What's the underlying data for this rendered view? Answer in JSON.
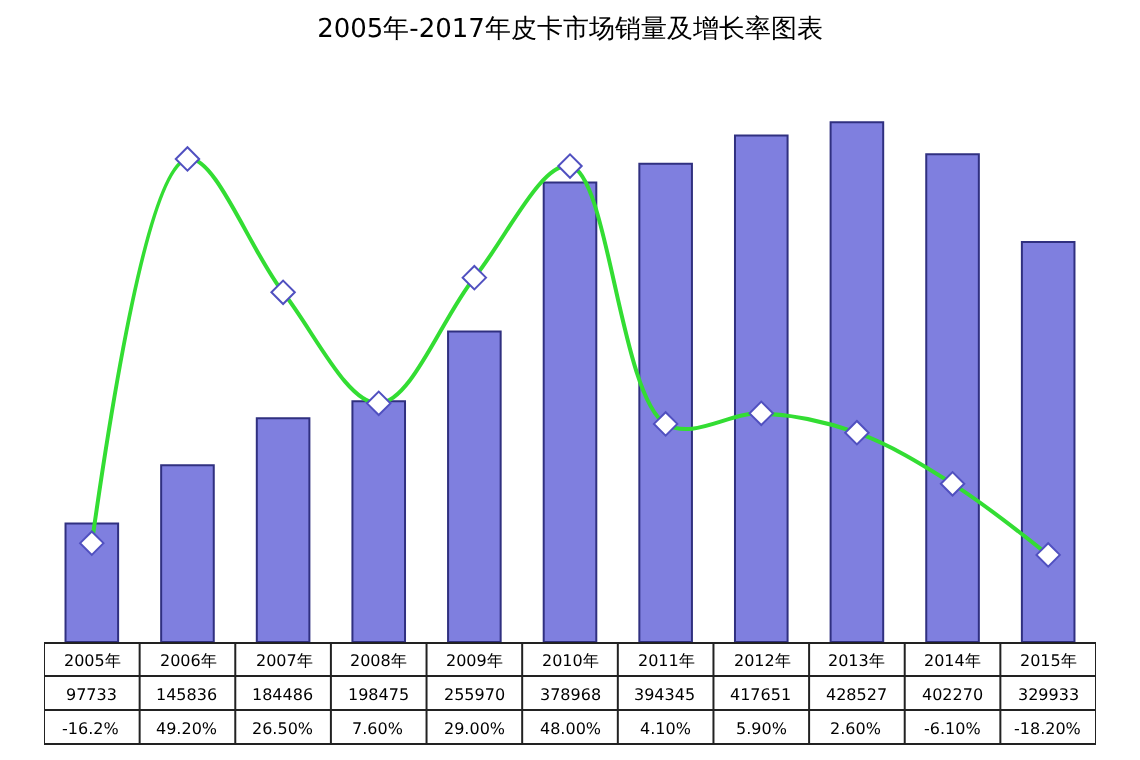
{
  "chart_data": {
    "type": "bar",
    "title": "2005年-2017年皮卡市场销量及增长率图表",
    "categories": [
      "2005年",
      "2006年",
      "2007年",
      "2008年",
      "2009年",
      "2010年",
      "2011年",
      "2012年",
      "2013年",
      "2014年",
      "2015年"
    ],
    "series": [
      {
        "color": "#7f7fdf",
        "values": [
          97733,
          145836,
          184486,
          198475,
          255970,
          378968,
          394345,
          417651,
          428527,
          402270,
          329933
        ],
        "value_labels": [
          "97733",
          "145836",
          "184486",
          "198475",
          "255970",
          "378968",
          "394345",
          "417651",
          "428527",
          "402270",
          "329933"
        ]
      },
      {
        "type": "line",
        "axis": "y2",
        "color": "#33dd33",
        "marker": "diamond",
        "values": [
          -16.2,
          49.2,
          26.5,
          7.6,
          29.0,
          48.0,
          4.1,
          5.9,
          2.6,
          -6.1,
          -18.2
        ],
        "value_labels": [
          "-16.2%",
          "49.20%",
          "26.50%",
          "7.60%",
          "29.00%",
          "48.00%",
          "4.10%",
          "5.90%",
          "2.60%",
          "-6.10%",
          "-18.20%"
        ]
      }
    ]
  }
}
